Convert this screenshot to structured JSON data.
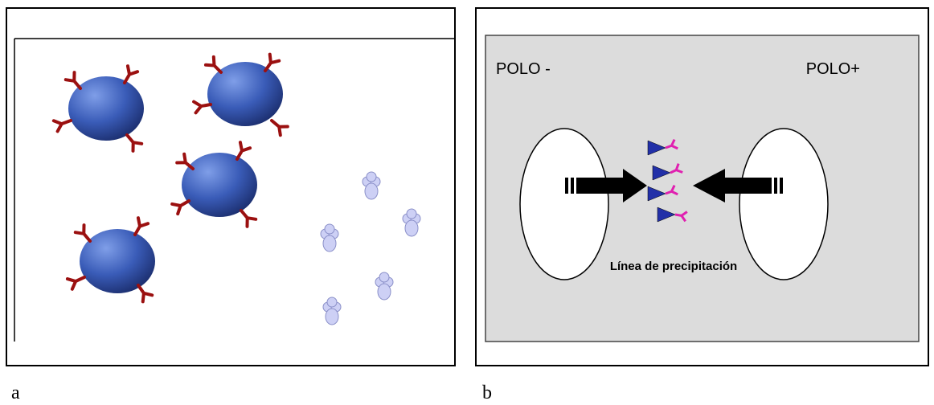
{
  "panels": [
    {
      "label": "a"
    },
    {
      "label": "b",
      "left_pole": "POLO -",
      "right_pole": "POLO+",
      "caption": "Línea de precipitación"
    }
  ]
}
